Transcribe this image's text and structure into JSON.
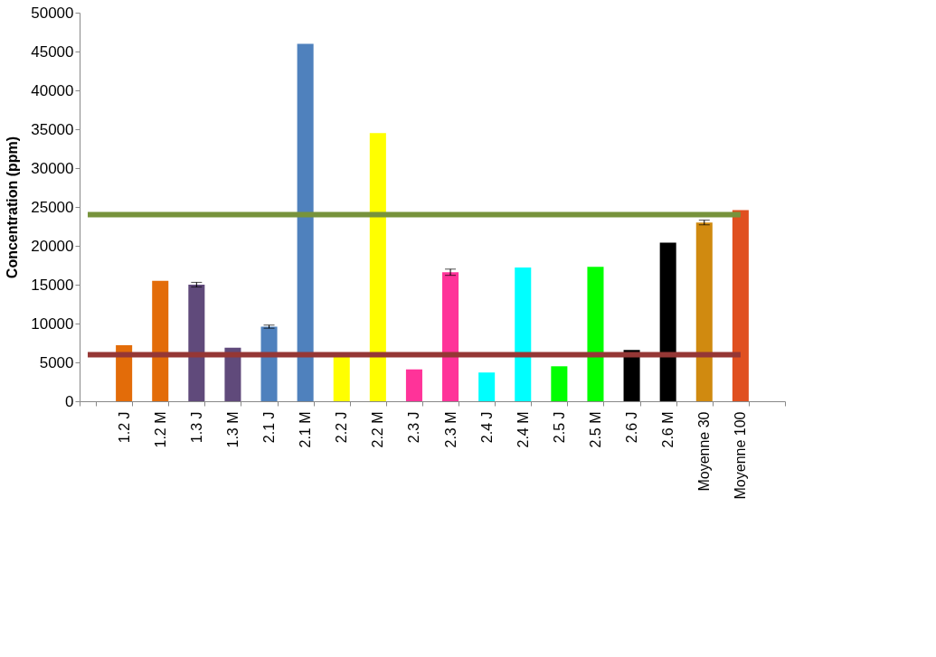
{
  "chart_data": {
    "type": "bar",
    "ylabel": "Concentration (ppm)",
    "categories": [
      null,
      "1.2 J",
      "1.2 M",
      "1.3 J",
      "1.3 M",
      "2.1 J",
      "2.1 M",
      "2.2 J",
      "2.2 M",
      "2.3 J",
      "2.3 M",
      "2.4 J",
      "2.4 M",
      "2.5 J",
      "2.5 M",
      "2.6 J",
      "2.6 M",
      "Moyenne 30",
      "Moyenne 100",
      null
    ],
    "values": [
      null,
      7200,
      15500,
      15000,
      6900,
      9600,
      46000,
      5700,
      34500,
      4100,
      16600,
      3700,
      17200,
      4500,
      17300,
      6600,
      20400,
      23000,
      24600,
      null
    ],
    "colors": [
      "#ffffff",
      "#e36c09",
      "#e36c09",
      "#604a7b",
      "#604a7b",
      "#4f81bd",
      "#4f81bd",
      "#ffff00",
      "#ffff00",
      "#ff3399",
      "#ff3399",
      "#00ffff",
      "#00ffff",
      "#00ff00",
      "#00ff00",
      "#000000",
      "#000000",
      "#d08a10",
      "#e05020",
      "#ffffff"
    ],
    "errors": [
      null,
      null,
      null,
      300,
      null,
      200,
      null,
      null,
      null,
      null,
      400,
      null,
      null,
      null,
      null,
      null,
      null,
      300,
      null,
      null
    ],
    "ylim": [
      0,
      50000
    ],
    "yticks": [
      0,
      5000,
      10000,
      15000,
      20000,
      25000,
      30000,
      35000,
      40000,
      45000,
      50000
    ],
    "ref_lines": [
      {
        "axis": "y",
        "value": 24000,
        "color": "#77933c"
      },
      {
        "axis": "y",
        "value": 6000,
        "color": "#953735"
      }
    ],
    "grid": false
  }
}
